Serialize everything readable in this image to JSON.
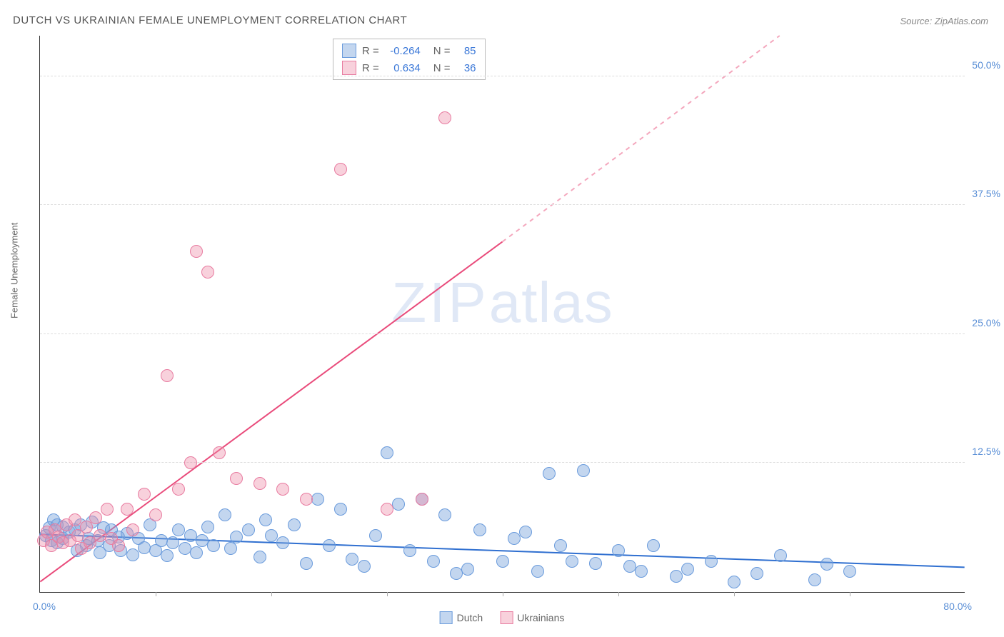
{
  "title": "DUTCH VS UKRAINIAN FEMALE UNEMPLOYMENT CORRELATION CHART",
  "source": "Source: ZipAtlas.com",
  "watermark": {
    "part1": "ZIP",
    "part2": "atlas"
  },
  "y_axis_title": "Female Unemployment",
  "chart": {
    "type": "scatter",
    "xlim": [
      0,
      80
    ],
    "ylim": [
      0,
      54
    ],
    "x_ticks": [
      10,
      20,
      30,
      40,
      50,
      60,
      70
    ],
    "y_gridlines": [
      12.5,
      25.0,
      37.5,
      50.0
    ],
    "y_tick_labels": [
      "12.5%",
      "25.0%",
      "37.5%",
      "50.0%"
    ],
    "x_label_start": "0.0%",
    "x_label_end": "80.0%",
    "plot_bg": "#ffffff",
    "grid_color": "#dddddd",
    "axis_color": "#333333",
    "tick_label_color": "#5a8fd6",
    "point_radius": 9,
    "series": [
      {
        "name": "Dutch",
        "fill": "rgba(121,163,220,0.45)",
        "stroke": "#6a9bdc",
        "r_value": "-0.264",
        "n_value": "85",
        "trend": {
          "x1": 0,
          "y1": 5.6,
          "x2": 80,
          "y2": 2.4,
          "color": "#2f6fd0",
          "width": 2,
          "dash": "none"
        },
        "points": [
          [
            0.5,
            5.5
          ],
          [
            0.8,
            6.2
          ],
          [
            1.0,
            5.0
          ],
          [
            1.2,
            7.0
          ],
          [
            1.5,
            4.8
          ],
          [
            1.5,
            6.5
          ],
          [
            2.0,
            6.3
          ],
          [
            2.0,
            5.2
          ],
          [
            2.5,
            5.8
          ],
          [
            3.0,
            6.0
          ],
          [
            3.2,
            4.0
          ],
          [
            3.5,
            6.5
          ],
          [
            4.0,
            4.5
          ],
          [
            4.2,
            5.2
          ],
          [
            4.5,
            6.8
          ],
          [
            5.0,
            5.0
          ],
          [
            5.2,
            3.8
          ],
          [
            5.5,
            6.2
          ],
          [
            6.0,
            4.5
          ],
          [
            6.2,
            6.0
          ],
          [
            6.8,
            5.3
          ],
          [
            7.0,
            4.0
          ],
          [
            7.5,
            5.7
          ],
          [
            8.0,
            3.6
          ],
          [
            8.5,
            5.2
          ],
          [
            9.0,
            4.3
          ],
          [
            9.5,
            6.5
          ],
          [
            10.0,
            4.0
          ],
          [
            10.5,
            5.0
          ],
          [
            11.0,
            3.5
          ],
          [
            11.5,
            4.8
          ],
          [
            12.0,
            6.0
          ],
          [
            12.5,
            4.2
          ],
          [
            13.0,
            5.5
          ],
          [
            13.5,
            3.8
          ],
          [
            14.0,
            5.0
          ],
          [
            14.5,
            6.3
          ],
          [
            15.0,
            4.5
          ],
          [
            16.0,
            7.5
          ],
          [
            16.5,
            4.2
          ],
          [
            17.0,
            5.3
          ],
          [
            18.0,
            6.0
          ],
          [
            19.0,
            3.4
          ],
          [
            19.5,
            7.0
          ],
          [
            20.0,
            5.5
          ],
          [
            21.0,
            4.8
          ],
          [
            22.0,
            6.5
          ],
          [
            23.0,
            2.8
          ],
          [
            24.0,
            9.0
          ],
          [
            25.0,
            4.5
          ],
          [
            26.0,
            8.0
          ],
          [
            27.0,
            3.2
          ],
          [
            28.0,
            2.5
          ],
          [
            29.0,
            5.5
          ],
          [
            30.0,
            13.5
          ],
          [
            31.0,
            8.5
          ],
          [
            32.0,
            4.0
          ],
          [
            33.0,
            9.0
          ],
          [
            34.0,
            3.0
          ],
          [
            35.0,
            7.5
          ],
          [
            36.0,
            1.8
          ],
          [
            37.0,
            2.2
          ],
          [
            38.0,
            6.0
          ],
          [
            40.0,
            3.0
          ],
          [
            41.0,
            5.2
          ],
          [
            42.0,
            5.8
          ],
          [
            43.0,
            2.0
          ],
          [
            44.0,
            11.5
          ],
          [
            45.0,
            4.5
          ],
          [
            46.0,
            3.0
          ],
          [
            47.0,
            11.8
          ],
          [
            48.0,
            2.8
          ],
          [
            50.0,
            4.0
          ],
          [
            51.0,
            2.5
          ],
          [
            52.0,
            2.0
          ],
          [
            53.0,
            4.5
          ],
          [
            55.0,
            1.5
          ],
          [
            56.0,
            2.2
          ],
          [
            58.0,
            3.0
          ],
          [
            60.0,
            1.0
          ],
          [
            62.0,
            1.8
          ],
          [
            64.0,
            3.5
          ],
          [
            67.0,
            1.2
          ],
          [
            68.0,
            2.7
          ],
          [
            70.0,
            2.0
          ]
        ]
      },
      {
        "name": "Ukrainians",
        "fill": "rgba(238,140,167,0.40)",
        "stroke": "#e87ba0",
        "r_value": "0.634",
        "n_value": "36",
        "trend_solid": {
          "x1": 0,
          "y1": 1.0,
          "x2": 40,
          "y2": 34.0,
          "color": "#e94b7b",
          "width": 2
        },
        "trend_dash": {
          "x1": 40,
          "y1": 34.0,
          "x2": 64,
          "y2": 54.0,
          "color": "#f4a7bd",
          "width": 2
        },
        "points": [
          [
            0.3,
            5.0
          ],
          [
            0.6,
            5.8
          ],
          [
            1.0,
            4.5
          ],
          [
            1.3,
            6.0
          ],
          [
            1.6,
            5.3
          ],
          [
            2.0,
            4.8
          ],
          [
            2.3,
            6.5
          ],
          [
            2.6,
            5.0
          ],
          [
            3.0,
            7.0
          ],
          [
            3.3,
            5.5
          ],
          [
            3.6,
            4.2
          ],
          [
            4.0,
            6.3
          ],
          [
            4.3,
            4.8
          ],
          [
            4.8,
            7.2
          ],
          [
            5.2,
            5.5
          ],
          [
            5.8,
            8.0
          ],
          [
            6.2,
            5.2
          ],
          [
            6.8,
            4.5
          ],
          [
            7.5,
            8.0
          ],
          [
            8.0,
            6.0
          ],
          [
            9.0,
            9.5
          ],
          [
            10.0,
            7.5
          ],
          [
            11.0,
            21.0
          ],
          [
            12.0,
            10.0
          ],
          [
            13.0,
            12.5
          ],
          [
            13.5,
            33.0
          ],
          [
            14.5,
            31.0
          ],
          [
            15.5,
            13.5
          ],
          [
            17.0,
            11.0
          ],
          [
            19.0,
            10.5
          ],
          [
            21.0,
            10.0
          ],
          [
            23.0,
            9.0
          ],
          [
            26.0,
            41.0
          ],
          [
            30.0,
            8.0
          ],
          [
            33.0,
            9.0
          ],
          [
            35.0,
            46.0
          ]
        ]
      }
    ]
  },
  "correlation_box": {
    "rows": [
      {
        "swatch_fill": "rgba(121,163,220,0.45)",
        "swatch_border": "#6a9bdc",
        "r_label": "R =",
        "r": "-0.264",
        "n_label": "N =",
        "n": "85"
      },
      {
        "swatch_fill": "rgba(238,140,167,0.40)",
        "swatch_border": "#e87ba0",
        "r_label": "R =",
        "r": "0.634",
        "n_label": "N =",
        "n": "36"
      }
    ]
  },
  "bottom_legend": [
    {
      "label": "Dutch",
      "fill": "rgba(121,163,220,0.45)",
      "border": "#6a9bdc"
    },
    {
      "label": "Ukrainians",
      "fill": "rgba(238,140,167,0.40)",
      "border": "#e87ba0"
    }
  ]
}
